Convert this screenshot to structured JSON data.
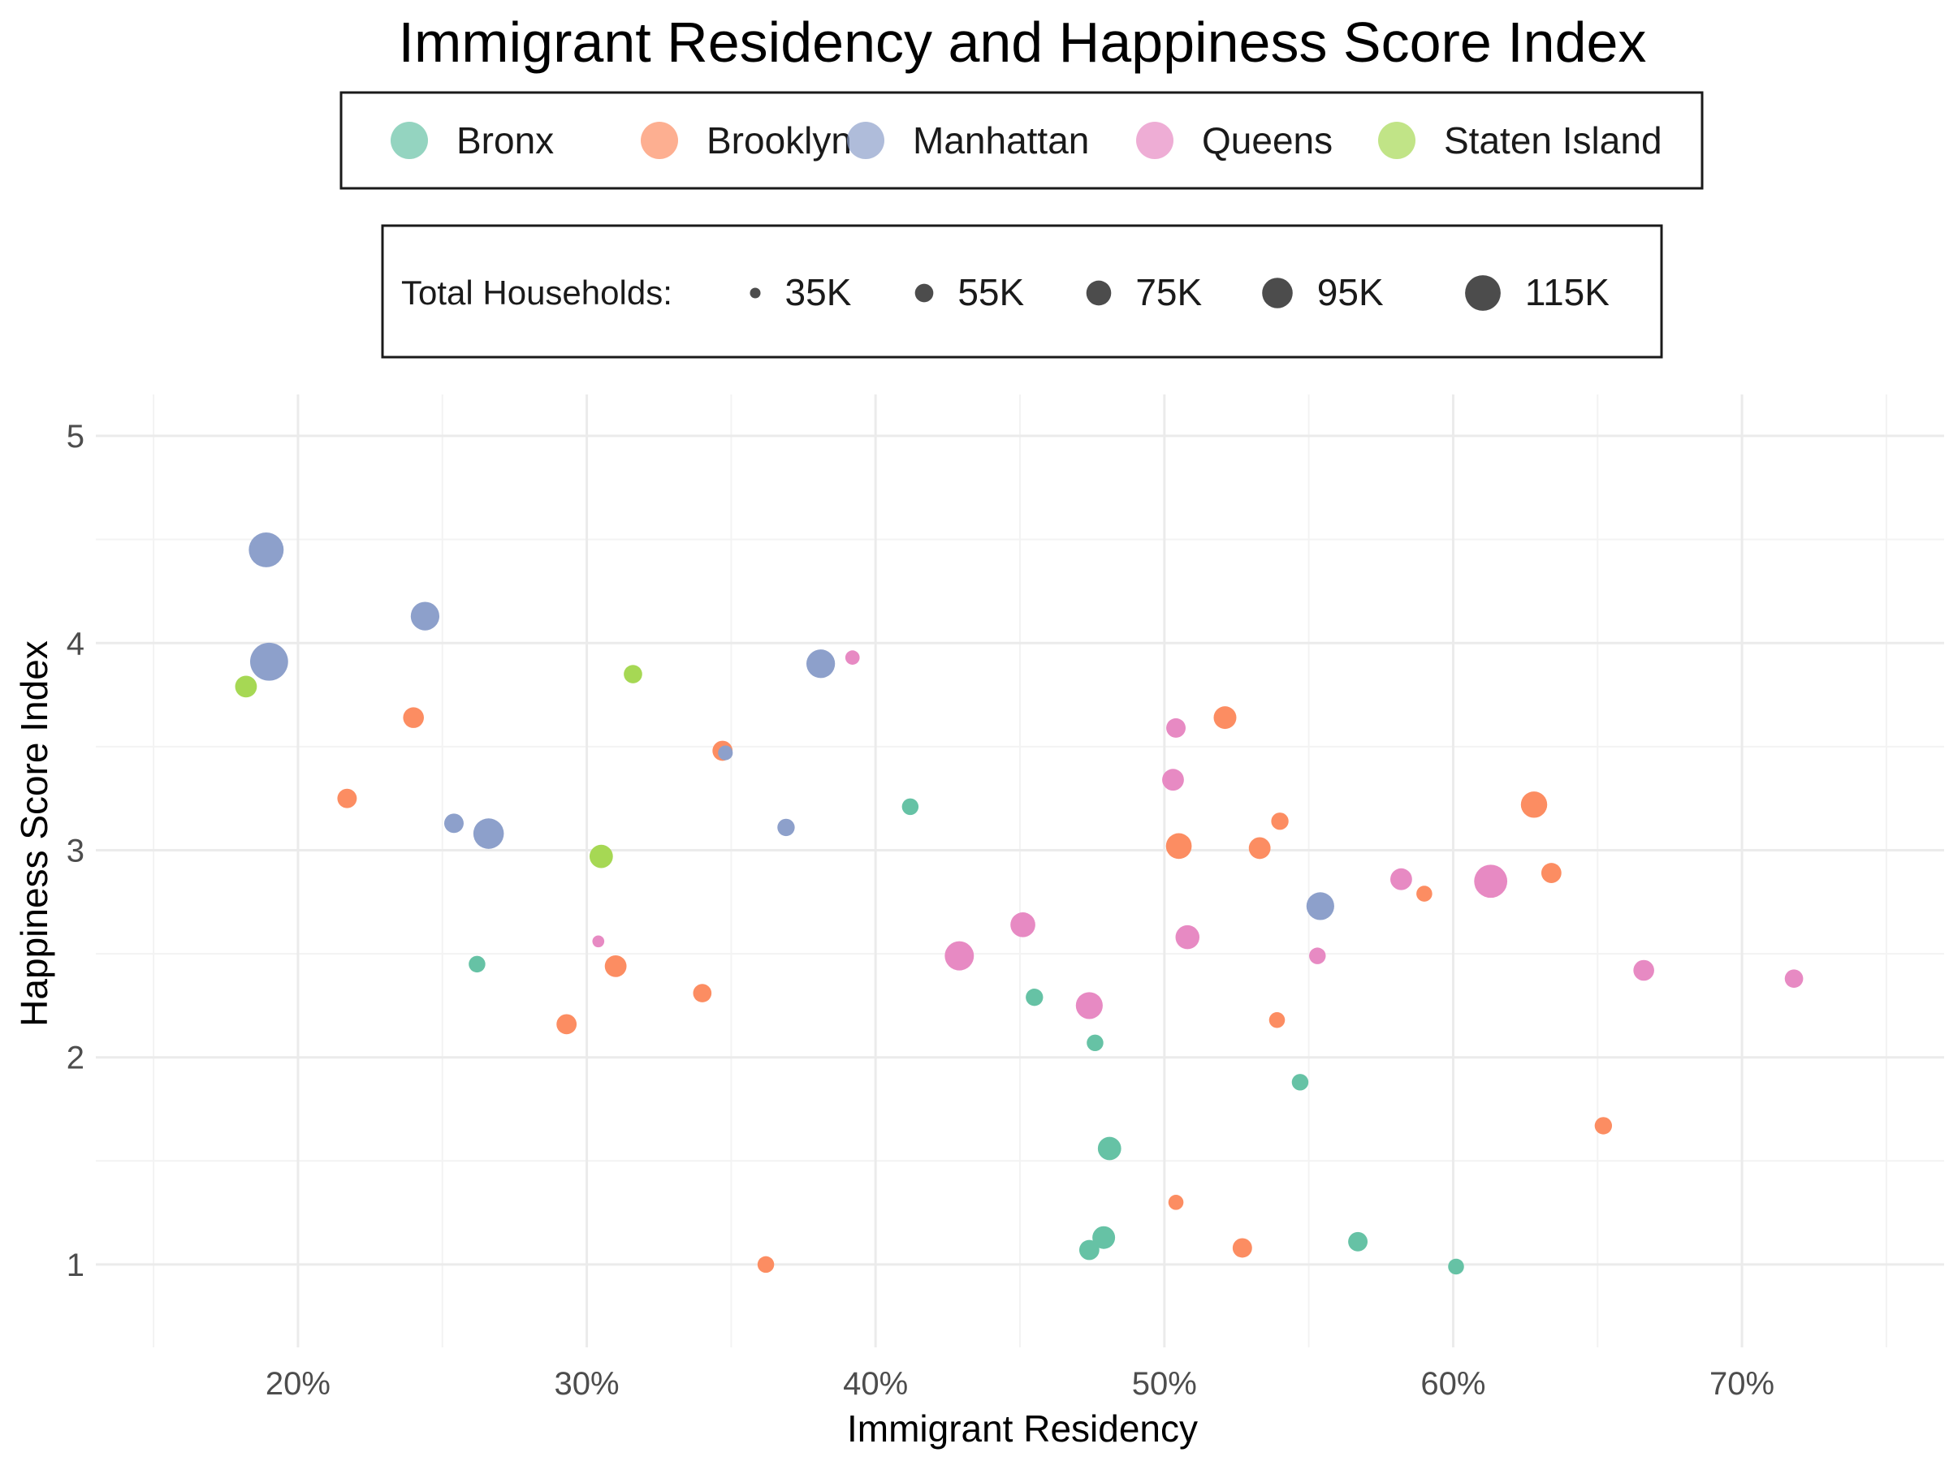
{
  "chart_data": {
    "type": "scatter",
    "title": "Immigrant Residency and Happiness Score Index",
    "xlabel": "Immigrant Residency",
    "ylabel": "Happiness Score Index",
    "xlim": [
      0.13,
      0.77
    ],
    "ylim": [
      0.6,
      5.2
    ],
    "x_ticks": [
      {
        "value": 0.2,
        "label": "20%"
      },
      {
        "value": 0.3,
        "label": "30%"
      },
      {
        "value": 0.4,
        "label": "40%"
      },
      {
        "value": 0.5,
        "label": "50%"
      },
      {
        "value": 0.6,
        "label": "60%"
      },
      {
        "value": 0.7,
        "label": "70%"
      }
    ],
    "y_ticks": [
      {
        "value": 1,
        "label": "1"
      },
      {
        "value": 2,
        "label": "2"
      },
      {
        "value": 3,
        "label": "3"
      },
      {
        "value": 4,
        "label": "4"
      },
      {
        "value": 5,
        "label": "5"
      }
    ],
    "grid": true,
    "legend_position": "top",
    "size_legend": {
      "title": "Total Households:",
      "entries": [
        {
          "value": 35000,
          "label": "35K"
        },
        {
          "value": 55000,
          "label": "55K"
        },
        {
          "value": 75000,
          "label": "75K"
        },
        {
          "value": 95000,
          "label": "95K"
        },
        {
          "value": 115000,
          "label": "115K"
        }
      ]
    },
    "series": [
      {
        "name": "Bronx",
        "color": "#66C2A5",
        "points": [
          {
            "x": 0.262,
            "y": 2.45,
            "households": 50000
          },
          {
            "x": 0.412,
            "y": 3.21,
            "households": 50000
          },
          {
            "x": 0.455,
            "y": 2.29,
            "households": 52000
          },
          {
            "x": 0.476,
            "y": 2.07,
            "households": 50000
          },
          {
            "x": 0.481,
            "y": 1.56,
            "households": 70000
          },
          {
            "x": 0.479,
            "y": 1.13,
            "households": 68000
          },
          {
            "x": 0.474,
            "y": 1.07,
            "households": 60000
          },
          {
            "x": 0.547,
            "y": 1.88,
            "households": 50000
          },
          {
            "x": 0.567,
            "y": 1.11,
            "households": 58000
          },
          {
            "x": 0.601,
            "y": 0.99,
            "households": 48000
          }
        ]
      },
      {
        "name": "Brooklyn",
        "color": "#FC8D62",
        "points": [
          {
            "x": 0.217,
            "y": 3.25,
            "households": 58000
          },
          {
            "x": 0.24,
            "y": 3.64,
            "households": 62000
          },
          {
            "x": 0.293,
            "y": 2.16,
            "households": 60000
          },
          {
            "x": 0.31,
            "y": 2.44,
            "households": 65000
          },
          {
            "x": 0.34,
            "y": 2.31,
            "households": 55000
          },
          {
            "x": 0.347,
            "y": 3.48,
            "households": 60000
          },
          {
            "x": 0.362,
            "y": 1.0,
            "households": 50000
          },
          {
            "x": 0.504,
            "y": 1.3,
            "households": 46000
          },
          {
            "x": 0.505,
            "y": 3.02,
            "households": 78000
          },
          {
            "x": 0.521,
            "y": 3.64,
            "households": 68000
          },
          {
            "x": 0.527,
            "y": 1.08,
            "households": 58000
          },
          {
            "x": 0.533,
            "y": 3.01,
            "households": 65000
          },
          {
            "x": 0.54,
            "y": 3.14,
            "households": 52000
          },
          {
            "x": 0.539,
            "y": 2.18,
            "households": 48000
          },
          {
            "x": 0.59,
            "y": 2.79,
            "households": 48000
          },
          {
            "x": 0.628,
            "y": 3.22,
            "households": 80000
          },
          {
            "x": 0.634,
            "y": 2.89,
            "households": 60000
          },
          {
            "x": 0.652,
            "y": 1.67,
            "households": 52000
          }
        ]
      },
      {
        "name": "Manhattan",
        "color": "#8DA0CB",
        "points": [
          {
            "x": 0.189,
            "y": 4.45,
            "households": 112000
          },
          {
            "x": 0.19,
            "y": 3.91,
            "households": 125000
          },
          {
            "x": 0.244,
            "y": 4.13,
            "households": 88000
          },
          {
            "x": 0.254,
            "y": 3.13,
            "households": 58000
          },
          {
            "x": 0.266,
            "y": 3.08,
            "households": 95000
          },
          {
            "x": 0.348,
            "y": 3.47,
            "households": 45000
          },
          {
            "x": 0.369,
            "y": 3.11,
            "households": 52000
          },
          {
            "x": 0.381,
            "y": 3.9,
            "households": 88000
          },
          {
            "x": 0.554,
            "y": 2.73,
            "households": 85000
          }
        ]
      },
      {
        "name": "Queens",
        "color": "#E78AC3",
        "points": [
          {
            "x": 0.304,
            "y": 2.56,
            "households": 38000
          },
          {
            "x": 0.392,
            "y": 3.93,
            "households": 44000
          },
          {
            "x": 0.429,
            "y": 2.49,
            "households": 90000
          },
          {
            "x": 0.451,
            "y": 2.64,
            "households": 75000
          },
          {
            "x": 0.474,
            "y": 2.25,
            "households": 82000
          },
          {
            "x": 0.504,
            "y": 3.59,
            "households": 58000
          },
          {
            "x": 0.503,
            "y": 3.34,
            "households": 65000
          },
          {
            "x": 0.508,
            "y": 2.58,
            "households": 72000
          },
          {
            "x": 0.553,
            "y": 2.49,
            "households": 50000
          },
          {
            "x": 0.582,
            "y": 2.86,
            "households": 65000
          },
          {
            "x": 0.613,
            "y": 2.85,
            "households": 105000
          },
          {
            "x": 0.666,
            "y": 2.42,
            "households": 62000
          },
          {
            "x": 0.718,
            "y": 2.38,
            "households": 55000
          }
        ]
      },
      {
        "name": "Staten Island",
        "color": "#A6D854",
        "points": [
          {
            "x": 0.182,
            "y": 3.79,
            "households": 65000
          },
          {
            "x": 0.316,
            "y": 3.85,
            "households": 55000
          },
          {
            "x": 0.305,
            "y": 2.97,
            "households": 70000
          }
        ]
      }
    ]
  }
}
